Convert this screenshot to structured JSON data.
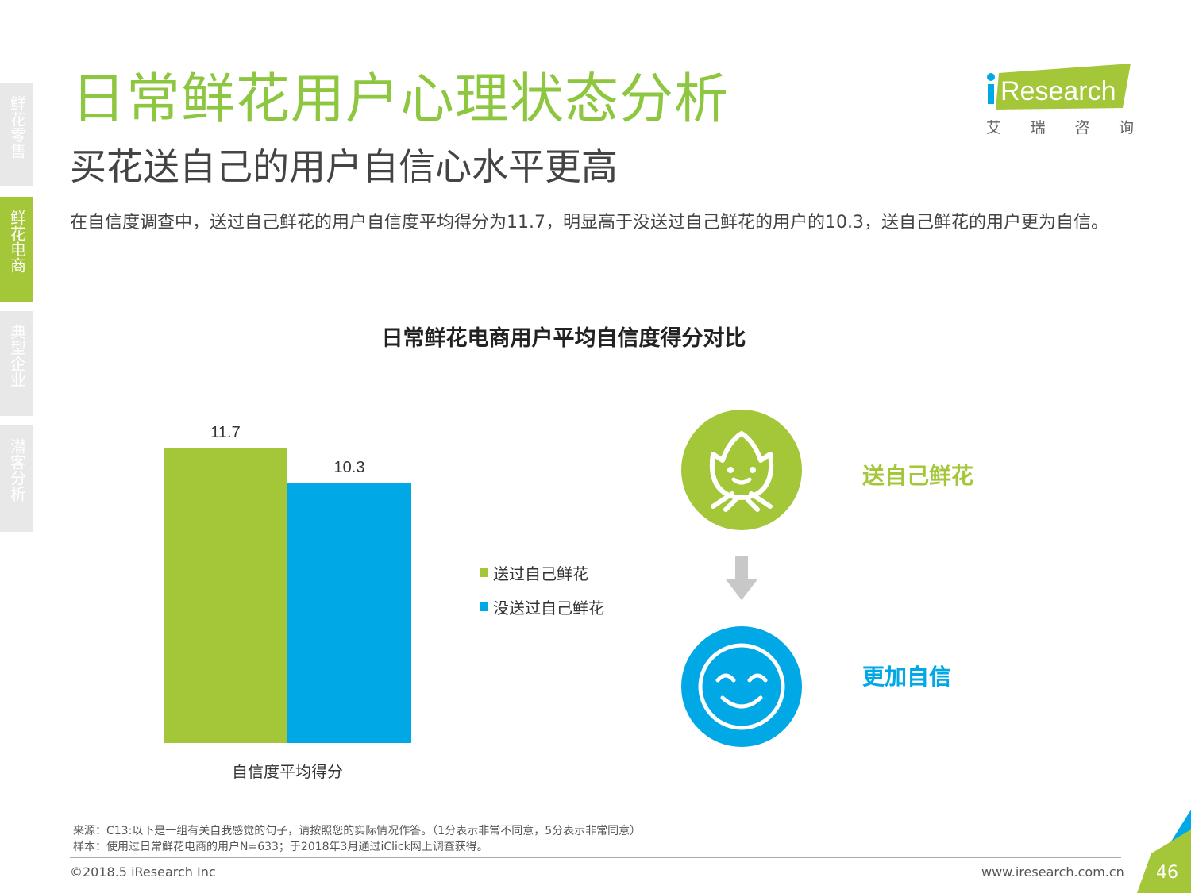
{
  "nav": {
    "items": [
      {
        "label": "鲜花零售",
        "active": false
      },
      {
        "label": "鲜花电商",
        "active": true
      },
      {
        "label": "典型企业",
        "active": false
      },
      {
        "label": "潜客分析",
        "active": false
      }
    ]
  },
  "header": {
    "title": "日常鲜花用户心理状态分析",
    "subtitle": "买花送自己的用户自信心水平更高",
    "description": "在自信度调查中，送过自己鲜花的用户自信度平均得分为11.7，明显高于没送过自己鲜花的用户的10.3，送自己鲜花的用户更为自信。"
  },
  "logo": {
    "brand": "iResearch",
    "cn": [
      "艾",
      "瑞",
      "咨",
      "询"
    ]
  },
  "chart_data": {
    "type": "bar",
    "title": "日常鲜花电商用户平均自信度得分对比",
    "categories": [
      "自信度平均得分"
    ],
    "series": [
      {
        "name": "送过自己鲜花",
        "values": [
          11.7
        ],
        "color": "#a4c639"
      },
      {
        "name": "没送过自己鲜花",
        "values": [
          10.3
        ],
        "color": "#00a8e6"
      }
    ],
    "data_labels": [
      "11.7",
      "10.3"
    ],
    "grid": false,
    "legend_position": "right"
  },
  "illustration": {
    "top_label": "送自己鲜花",
    "bottom_label": "更加自信",
    "top_icon": "flower-face-icon",
    "bottom_icon": "smiley-face-icon",
    "arrow_icon": "arrow-down-icon"
  },
  "footer": {
    "source": "来源：C13:以下是一组有关自我感觉的句子，请按照您的实际情况作答。（1分表示非常不同意，5分表示非常同意）",
    "sample": "样本：使用过日常鲜花电商的用户N=633；于2018年3月通过iClick网上调查获得。",
    "copyright": "©2018.5 iResearch Inc",
    "website": "www.iresearch.com.cn",
    "page": "46"
  }
}
